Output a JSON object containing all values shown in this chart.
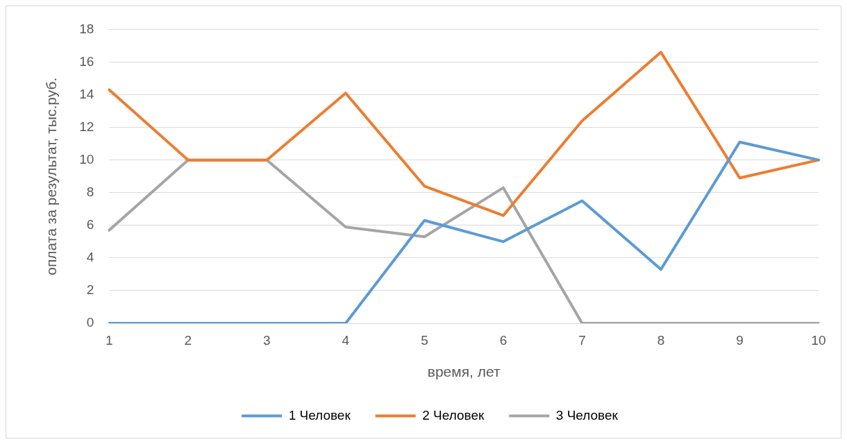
{
  "chart_data": {
    "type": "line",
    "xlabel": "время, лет",
    "ylabel": "оплата за результат, тыс.руб.",
    "categories": [
      "1",
      "2",
      "3",
      "4",
      "5",
      "6",
      "7",
      "8",
      "9",
      "10"
    ],
    "series": [
      {
        "name": "1 Человек",
        "color": "#5b9bd5",
        "values": [
          0,
          0,
          0,
          0,
          6.3,
          5,
          7.5,
          3.3,
          11.1,
          10
        ]
      },
      {
        "name": "2 Человек",
        "color": "#ed7d31",
        "values": [
          14.3,
          10,
          10,
          14.1,
          8.4,
          6.6,
          12.4,
          16.6,
          8.9,
          10
        ]
      },
      {
        "name": "3 Человек",
        "color": "#a5a5a5",
        "values": [
          5.7,
          10,
          10,
          5.9,
          5.3,
          8.3,
          0,
          0,
          0,
          0
        ]
      }
    ],
    "ylim": [
      0,
      18
    ],
    "yticks": [
      0,
      2,
      4,
      6,
      8,
      10,
      12,
      14,
      16,
      18
    ],
    "grid": "y",
    "legend": "bottom",
    "marker": "none",
    "line_style": "solid"
  }
}
